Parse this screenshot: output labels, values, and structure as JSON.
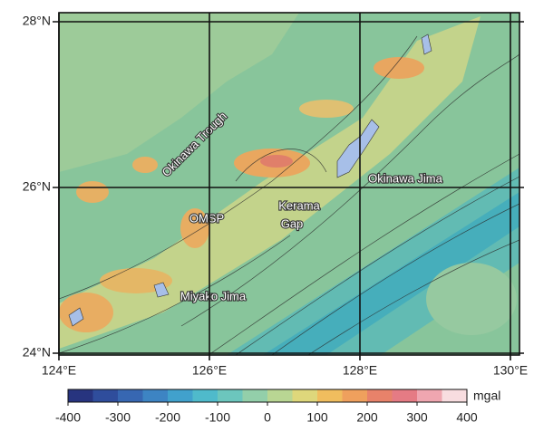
{
  "map": {
    "lat_ticks": [
      {
        "value": 28,
        "label": "28°N"
      },
      {
        "value": 26,
        "label": "26°N"
      },
      {
        "value": 24,
        "label": "24°N"
      }
    ],
    "lon_ticks": [
      {
        "value": 124,
        "label": "124°E"
      },
      {
        "value": 126,
        "label": "126°E"
      },
      {
        "value": 128,
        "label": "128°E"
      },
      {
        "value": 130,
        "label": "130°E"
      }
    ],
    "places": [
      "Okinawa Trough",
      "OMSP",
      "Kerama",
      "Gap",
      "Okinawa Jima",
      "Miyako Jima"
    ]
  },
  "colorbar": {
    "unit": "mgal",
    "range": [
      -400,
      400
    ],
    "ticks": [
      -400,
      -300,
      -200,
      -100,
      0,
      100,
      200,
      300,
      400
    ],
    "colors": [
      "#27347f",
      "#2f4d9c",
      "#3767b2",
      "#3d84c3",
      "#41a1cc",
      "#4fbacb",
      "#6cc6bd",
      "#93cfaa",
      "#b9d693",
      "#ded77b",
      "#f0bd5e",
      "#efa05d",
      "#e8826a",
      "#e57b84",
      "#efa6b0",
      "#f8dde0"
    ]
  }
}
